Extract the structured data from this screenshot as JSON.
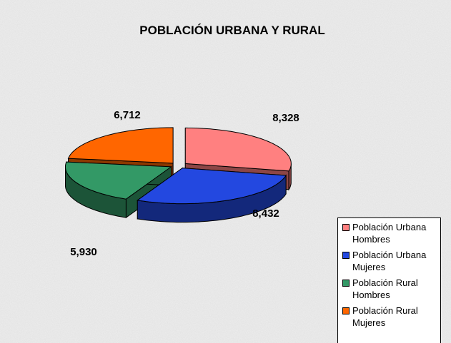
{
  "chart_data": {
    "type": "pie",
    "title": "POBLACIÓN URBANA Y RURAL",
    "categories": [
      "Población Urbana Hombres",
      "Población Urbana Mujeres",
      "Población Rural Hombres",
      "Población Rural Mujeres"
    ],
    "values": [
      8328,
      8432,
      5930,
      6712
    ],
    "value_labels": [
      "8,328",
      "8,432",
      "5,930",
      "6,712"
    ],
    "colors": [
      "#ff8080",
      "#2348e0",
      "#339966",
      "#ff6600"
    ],
    "legend": "right"
  }
}
